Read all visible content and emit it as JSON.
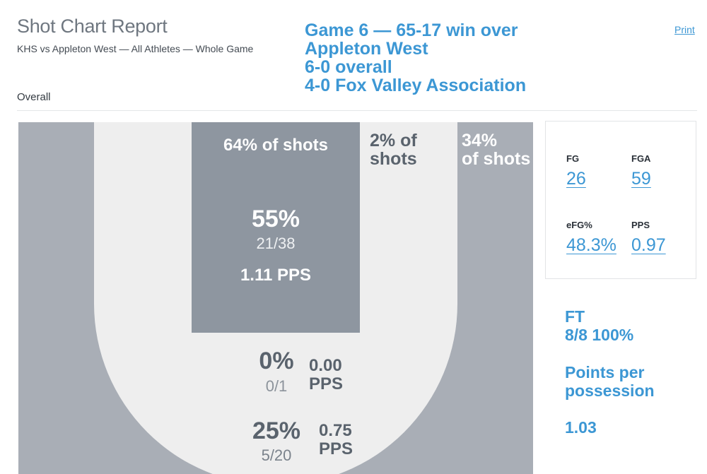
{
  "header": {
    "title": "Shot Chart Report",
    "subtitle": "KHS vs Appleton West — All Athletes — Whole Game",
    "print_label": "Print",
    "section_label": "Overall"
  },
  "game_info": [
    "Game 6 — 65-17 win over",
    "Appleton West",
    "6-0 overall",
    "4-0 Fox Valley Association"
  ],
  "court": {
    "paint": {
      "share": "64% of shots",
      "pct": "55%",
      "made_attempts": "21/38",
      "pps": "1.11 PPS"
    },
    "midrange_share": {
      "line1": "2% of",
      "line2": "shots"
    },
    "three_share": {
      "line1": "34%",
      "line2": "of shots"
    },
    "midrange": {
      "pct": "0%",
      "made_attempts": "0/1",
      "pps_value": "0.00",
      "pps_label": "PPS"
    },
    "three": {
      "pct": "25%",
      "made_attempts": "5/20",
      "pps_value": "0.75",
      "pps_label": "PPS"
    }
  },
  "stats": {
    "fg_label": "FG",
    "fg_value": "26",
    "fga_label": "FGA",
    "fga_value": "59",
    "efg_label": "eFG%",
    "efg_value": "48.3%",
    "pps_label": "PPS",
    "pps_value": "0.97"
  },
  "free_throws": {
    "label": "FT",
    "value": "8/8 100%"
  },
  "possession": {
    "line1": "Points per",
    "line2": "possession",
    "value": "1.03"
  },
  "colors": {
    "accent": "#3c97d4",
    "three_zone": "#a9aeb6",
    "mid_zone": "#eeeeee",
    "paint_zone": "#8e96a0"
  }
}
